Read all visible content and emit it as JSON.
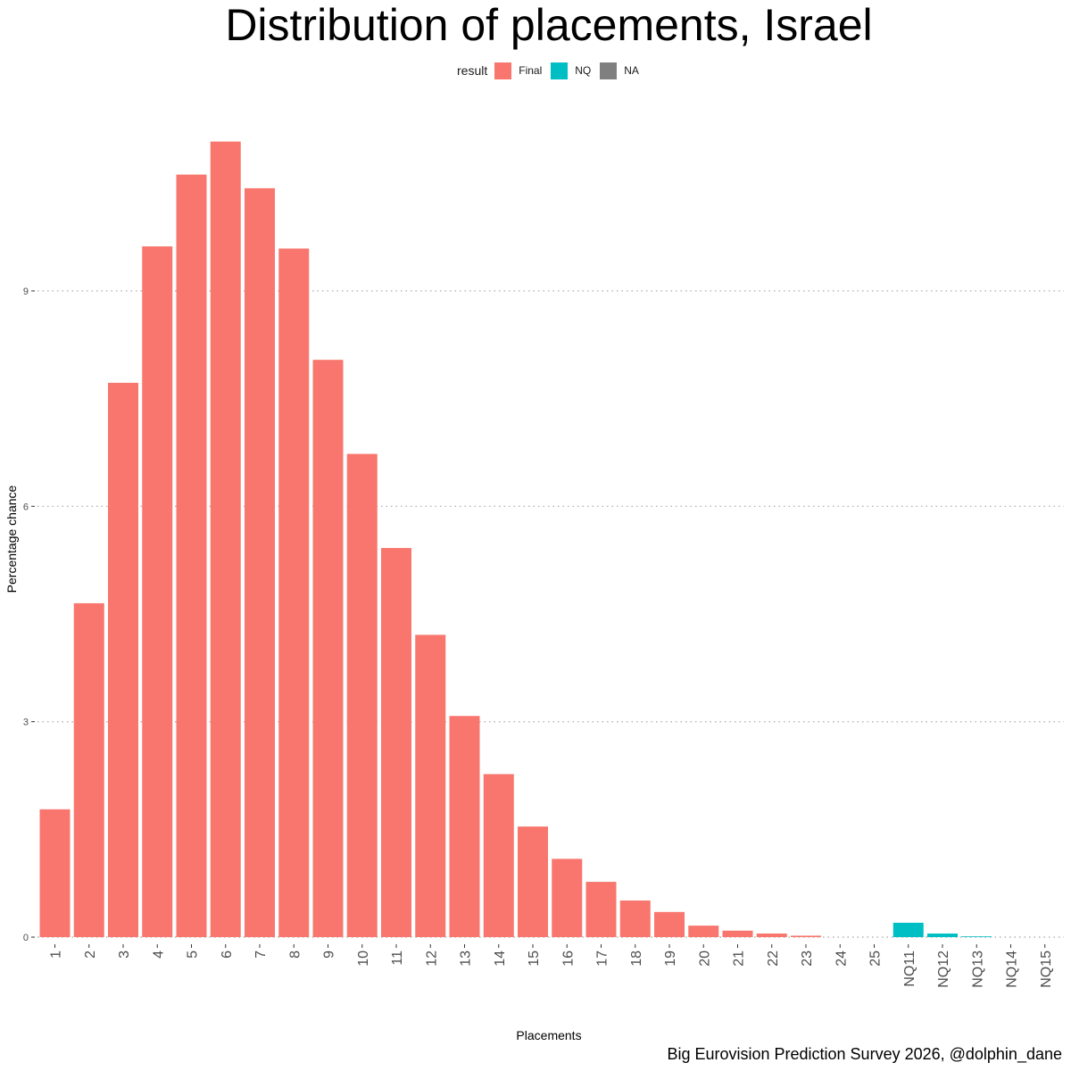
{
  "chart_data": {
    "type": "bar",
    "title": "Distribution of placements, Israel",
    "xlabel": "Placements",
    "ylabel": "Percentage chance",
    "ylim": [
      0,
      11.1
    ],
    "yticks": [
      0,
      3,
      6,
      9
    ],
    "grid": "horizontal dotted",
    "legend": {
      "title": "result",
      "position": "top",
      "entries": [
        {
          "label": "Final",
          "color": "#F8766D"
        },
        {
          "label": "NQ",
          "color": "#00BFC4"
        },
        {
          "label": "NA",
          "color": "#7F7F7F"
        }
      ]
    },
    "categories": [
      "1",
      "2",
      "3",
      "4",
      "5",
      "6",
      "7",
      "8",
      "9",
      "10",
      "11",
      "12",
      "13",
      "14",
      "15",
      "16",
      "17",
      "18",
      "19",
      "20",
      "21",
      "22",
      "23",
      "24",
      "25",
      "NQ11",
      "NQ12",
      "NQ13",
      "NQ14",
      "NQ15"
    ],
    "values": [
      1.78,
      4.65,
      7.72,
      9.62,
      10.62,
      11.08,
      10.43,
      9.59,
      8.04,
      6.73,
      5.42,
      4.21,
      3.08,
      2.27,
      1.54,
      1.09,
      0.77,
      0.51,
      0.35,
      0.16,
      0.09,
      0.05,
      0.02,
      0.0,
      0.0,
      0.2,
      0.05,
      0.01,
      0.0,
      0.0
    ],
    "groups": [
      "Final",
      "Final",
      "Final",
      "Final",
      "Final",
      "Final",
      "Final",
      "Final",
      "Final",
      "Final",
      "Final",
      "Final",
      "Final",
      "Final",
      "Final",
      "Final",
      "Final",
      "Final",
      "Final",
      "Final",
      "Final",
      "Final",
      "Final",
      "Final",
      "Final",
      "NQ",
      "NQ",
      "NQ",
      "NQ",
      "NQ"
    ]
  },
  "caption": "Big Eurovision Prediction Survey 2026, @dolphin_dane"
}
